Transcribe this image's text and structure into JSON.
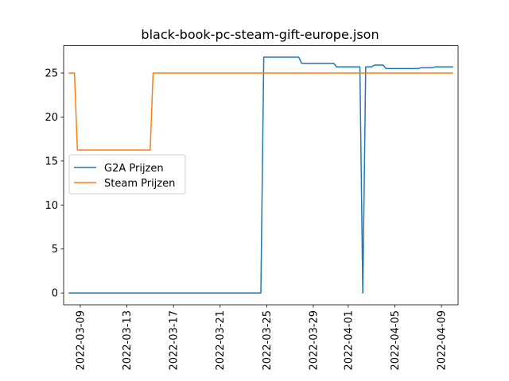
{
  "chart_data": {
    "type": "line",
    "title": "black-book-pc-steam-gift-europe.json",
    "xlabel": "",
    "ylabel": "",
    "x_axis": "date",
    "xlim": [
      "2022-03-08",
      "2022-04-10"
    ],
    "ylim": [
      -1.34,
      28.1
    ],
    "x_ticks": [
      "2022-03-09",
      "2022-03-13",
      "2022-03-17",
      "2022-03-21",
      "2022-03-25",
      "2022-03-29",
      "2022-04-01",
      "2022-04-05",
      "2022-04-09"
    ],
    "y_ticks": [
      0,
      5,
      10,
      15,
      20,
      25
    ],
    "legend_position": "center-left",
    "grid": false,
    "series": [
      {
        "name": "G2A Prijzen",
        "color": "#1f77b4",
        "points": [
          [
            "2022-03-08",
            0
          ],
          [
            "2022-03-24 12:00",
            0
          ],
          [
            "2022-03-24 18:00",
            26.8
          ],
          [
            "2022-03-27 18:00",
            26.8
          ],
          [
            "2022-03-28",
            26.1
          ],
          [
            "2022-03-30 18:00",
            26.1
          ],
          [
            "2022-03-31",
            25.7
          ],
          [
            "2022-04-02",
            25.7
          ],
          [
            "2022-04-02 06:00",
            0
          ],
          [
            "2022-04-02 12:00",
            25.7
          ],
          [
            "2022-04-03",
            25.7
          ],
          [
            "2022-04-03 06:00",
            25.9
          ],
          [
            "2022-04-04",
            25.9
          ],
          [
            "2022-04-04 06:00",
            25.5
          ],
          [
            "2022-04-07",
            25.5
          ],
          [
            "2022-04-07 06:00",
            25.6
          ],
          [
            "2022-04-08 06:00",
            25.6
          ],
          [
            "2022-04-08 12:00",
            25.7
          ],
          [
            "2022-04-10",
            25.7
          ]
        ]
      },
      {
        "name": "Steam Prijzen",
        "color": "#ff7f0e",
        "points": [
          [
            "2022-03-08",
            25
          ],
          [
            "2022-03-08 12:00",
            25
          ],
          [
            "2022-03-08 18:00",
            16.25
          ],
          [
            "2022-03-15",
            16.25
          ],
          [
            "2022-03-15 06:00",
            25
          ],
          [
            "2022-04-10",
            25
          ]
        ]
      }
    ]
  }
}
